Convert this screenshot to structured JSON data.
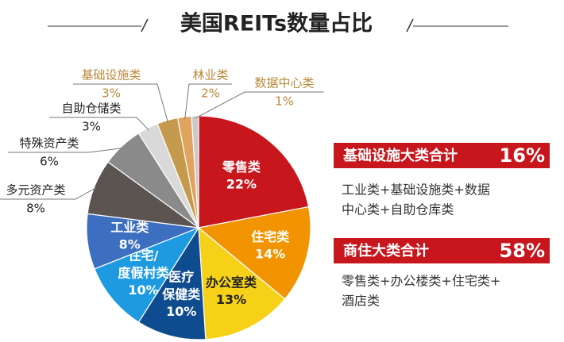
{
  "chart_data": {
    "type": "pie",
    "title": "美国REITs数量占比",
    "categories": [
      "零售类",
      "住宅类",
      "办公室类",
      "医疗\n保健类",
      "住宅/\n度假村类",
      "工业类",
      "多元资产类",
      "特殊资产类",
      "自助仓储类",
      "基础设施类",
      "林业类",
      "数据中心类"
    ],
    "values": [
      22,
      14,
      13,
      10,
      10,
      8,
      8,
      6,
      3,
      3,
      2,
      1
    ],
    "value_labels": [
      "22%",
      "14%",
      "13%",
      "10%",
      "10%",
      "8%",
      "8%",
      "6%",
      "3%",
      "3%",
      "2%",
      "1%"
    ],
    "colors": [
      "#c8161d",
      "#f29400",
      "#f7d117",
      "#0f4c8f",
      "#1e9be0",
      "#3d6fc0",
      "#5b5451",
      "#8a8a8a",
      "#d9d9d9",
      "#c59a4c",
      "#e0a460",
      "#c9c9c9"
    ]
  },
  "annotations": [
    {
      "title": "基础设施大类合计",
      "value": "16%",
      "text": [
        "工业类+基础设施类+数据",
        "中心类+自助仓库类"
      ]
    },
    {
      "title": "商住大类合计",
      "value": "58%",
      "text": [
        "零售类+办公楼类+住宅类+",
        "酒店类"
      ]
    }
  ]
}
